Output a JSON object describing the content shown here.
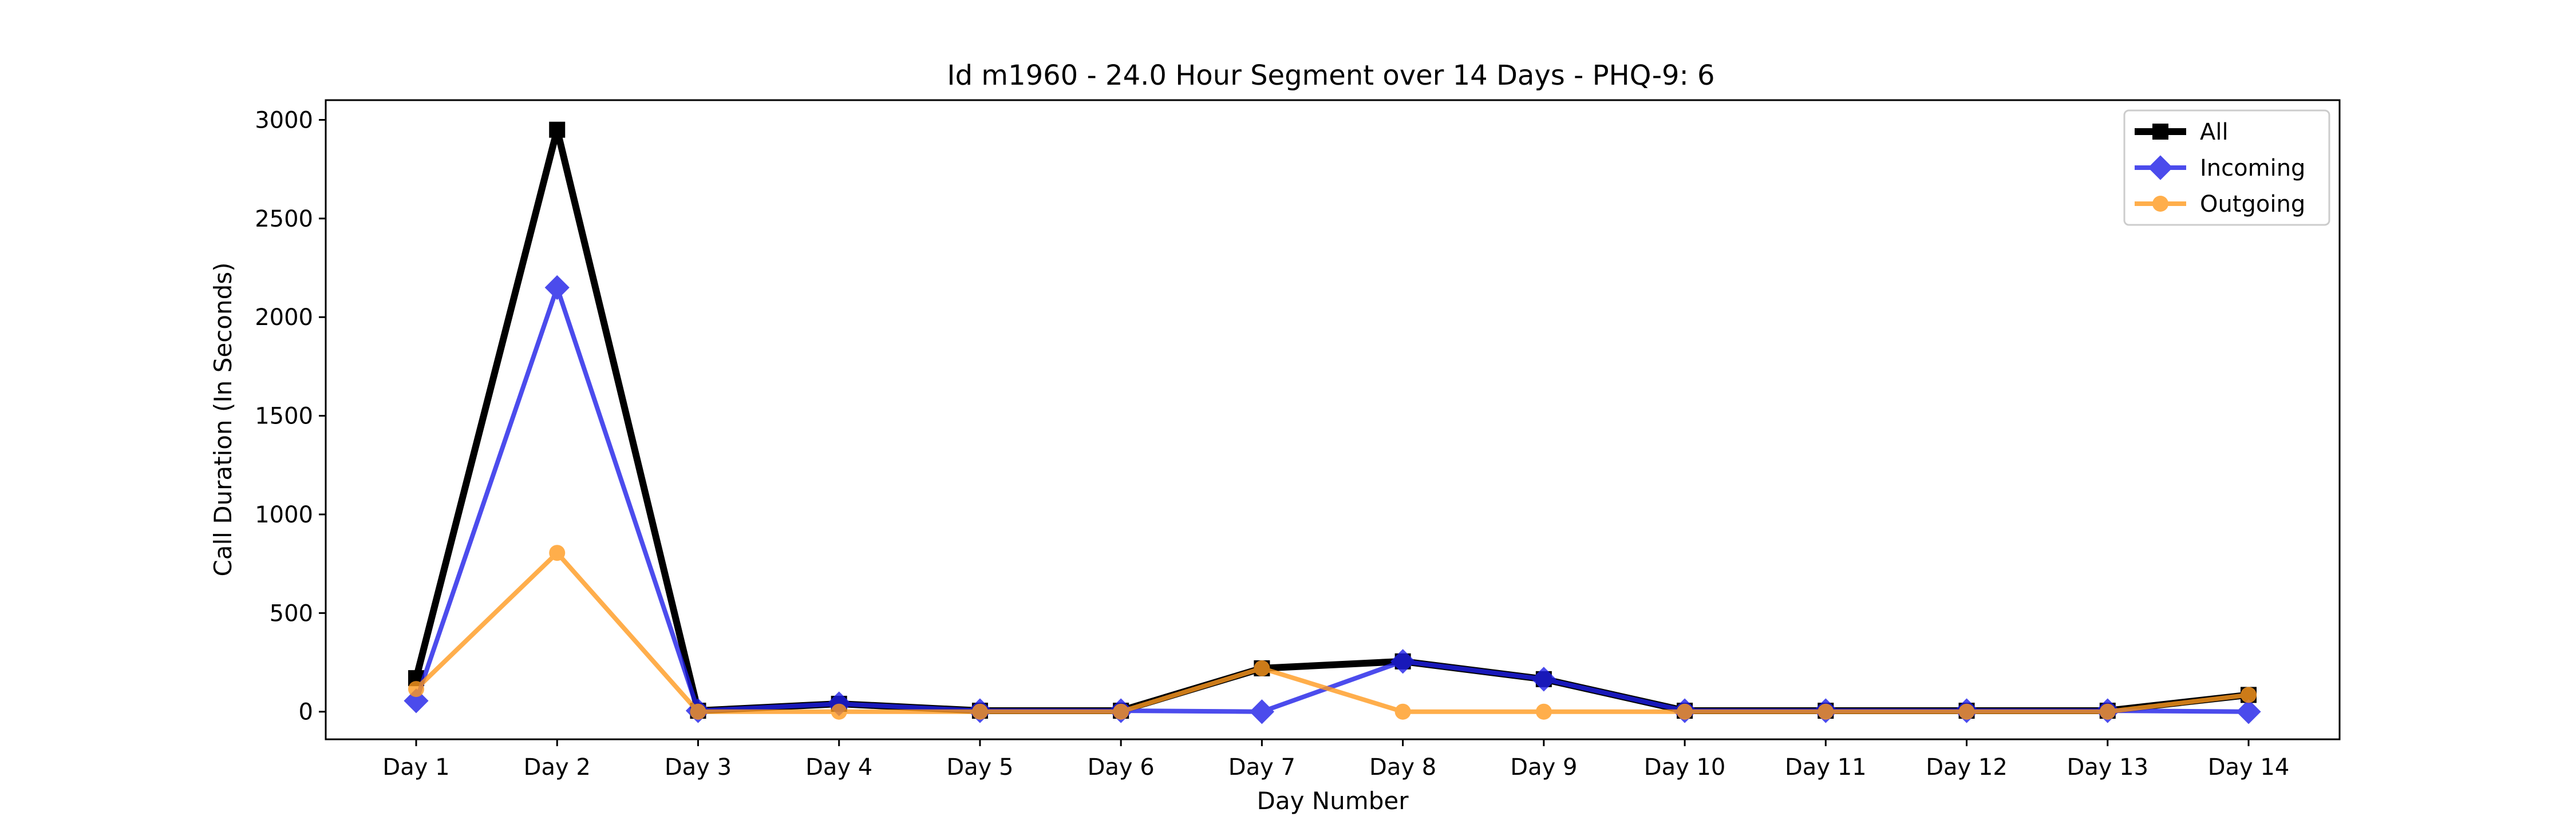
{
  "chart_data": {
    "type": "line",
    "title": "Id m1960 - 24.0 Hour Segment over 14 Days - PHQ-9: 6",
    "xlabel": "Day Number",
    "ylabel": "Call Duration (In Seconds)",
    "categories": [
      "Day 1",
      "Day 2",
      "Day 3",
      "Day 4",
      "Day 5",
      "Day 6",
      "Day 7",
      "Day 8",
      "Day 9",
      "Day 10",
      "Day 11",
      "Day 12",
      "Day 13",
      "Day 14"
    ],
    "ylim": [
      -140,
      3100
    ],
    "yticks": [
      0,
      500,
      1000,
      1500,
      2000,
      2500,
      3000
    ],
    "grid": false,
    "legend_position": "top-right",
    "series": [
      {
        "name": "All",
        "color": "#000000",
        "marker": "square",
        "values": [
          170,
          2950,
          5,
          40,
          5,
          5,
          220,
          255,
          165,
          5,
          5,
          5,
          5,
          85
        ]
      },
      {
        "name": "Incoming",
        "color": "#1f1fe8",
        "marker": "diamond",
        "values": [
          55,
          2150,
          5,
          40,
          5,
          5,
          0,
          255,
          165,
          5,
          5,
          5,
          5,
          0
        ]
      },
      {
        "name": "Outgoing",
        "color": "#ff9a1f",
        "marker": "circle",
        "values": [
          115,
          805,
          0,
          0,
          0,
          0,
          220,
          0,
          0,
          0,
          0,
          0,
          0,
          85
        ]
      }
    ]
  }
}
